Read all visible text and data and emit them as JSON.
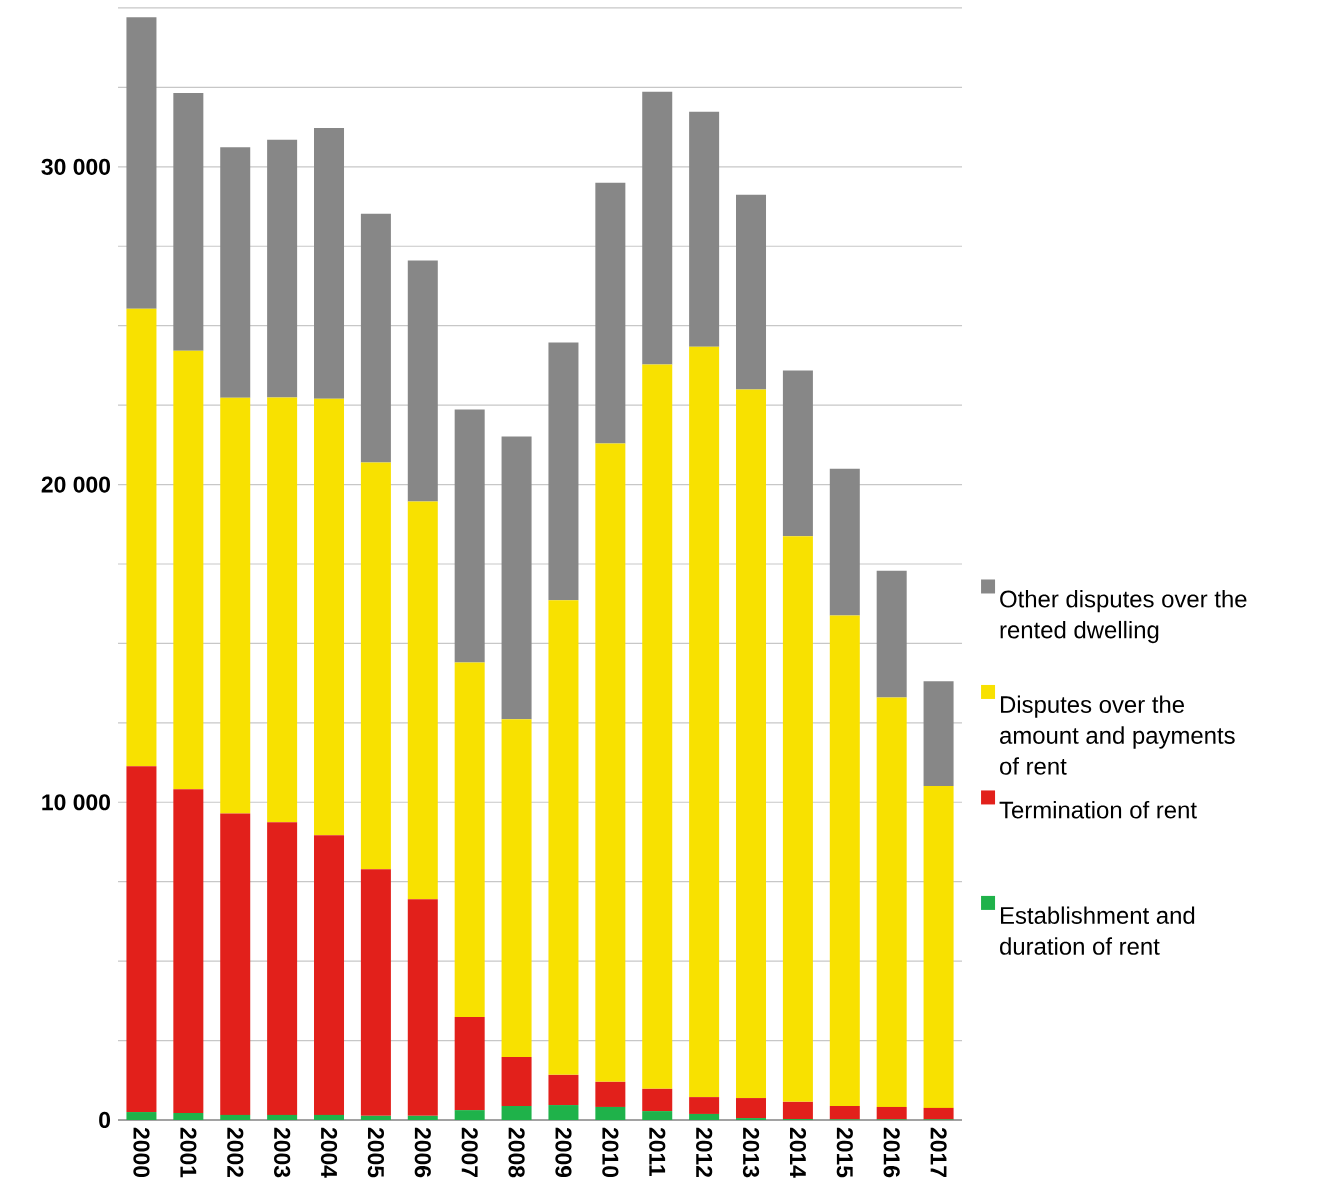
{
  "chart_data": {
    "type": "bar",
    "stacked": true,
    "categories": [
      "2000",
      "2001",
      "2002",
      "2003",
      "2004",
      "2005",
      "2006",
      "2007",
      "2008",
      "2009",
      "2010",
      "2011",
      "2012",
      "2013",
      "2014",
      "2015",
      "2016",
      "2017"
    ],
    "series": [
      {
        "name": "Establishment and duration of rent",
        "color": "#1fb24a",
        "values": [
          250,
          220,
          160,
          160,
          160,
          130,
          130,
          310,
          440,
          470,
          410,
          280,
          190,
          60,
          30,
          20,
          20,
          20
        ]
      },
      {
        "name": "Termination of rent",
        "color": "#e2201b",
        "values": [
          10880,
          10190,
          9490,
          9210,
          8800,
          7760,
          6820,
          2930,
          1540,
          950,
          790,
          700,
          530,
          630,
          540,
          420,
          390,
          360
        ]
      },
      {
        "name": "Disputes over the amount and payments of rent",
        "color": "#f8e100",
        "values": [
          14400,
          13800,
          13080,
          13370,
          13740,
          12800,
          12520,
          11160,
          10630,
          14940,
          20090,
          22800,
          23620,
          22300,
          17800,
          15440,
          12890,
          10130
        ]
      },
      {
        "name": "Other disputes over the rented dwelling",
        "color": "#878787",
        "values": [
          9180,
          8110,
          7890,
          8110,
          8520,
          7830,
          7580,
          7960,
          8900,
          8110,
          8210,
          8580,
          7390,
          6130,
          5220,
          4620,
          3990,
          3300
        ]
      }
    ],
    "ylim": [
      0,
      35000
    ],
    "yticks": [
      0,
      {
        "value": 2500,
        "label": null
      },
      {
        "value": 5000,
        "label": null
      },
      {
        "value": 7500,
        "label": null
      },
      {
        "value": 10000,
        "label": "10 000"
      },
      {
        "value": 12500,
        "label": null
      },
      {
        "value": 15000,
        "label": null
      },
      {
        "value": 17500,
        "label": null
      },
      {
        "value": 20000,
        "label": "20 000"
      },
      {
        "value": 22500,
        "label": null
      },
      {
        "value": 25000,
        "label": null
      },
      {
        "value": 27500,
        "label": null
      },
      {
        "value": 30000,
        "label": "30 000"
      },
      {
        "value": 32500,
        "label": null
      },
      {
        "value": 35000,
        "label": null
      }
    ],
    "grid": "y",
    "legend": "right"
  }
}
